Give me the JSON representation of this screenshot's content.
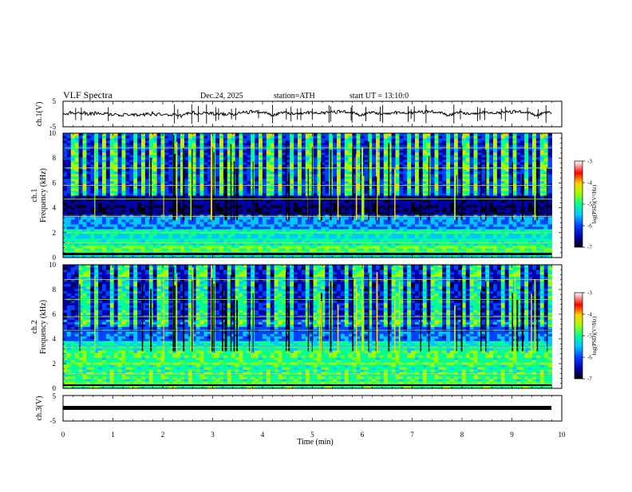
{
  "header": {
    "title": "VLF  Spectra",
    "date": "Dec.24, 2025",
    "station": "station=ATH",
    "start_ut": "start  UT  =   13:10:0"
  },
  "chart_data": [
    {
      "type": "line",
      "panel": "ch1-waveform",
      "ylabel": "ch.1(V)",
      "ylim": [
        -5,
        5
      ],
      "yticks": [
        "5",
        "-5"
      ],
      "xlim": [
        0,
        10
      ],
      "x_end": 9.8,
      "approx_level": 0
    },
    {
      "type": "heatmap",
      "panel": "ch1-spectrogram",
      "ylabel_lines": [
        "ch.1",
        "Frequency  (kHz)"
      ],
      "ylim": [
        0,
        10
      ],
      "yticks": [
        "0",
        "2",
        "4",
        "6",
        "8",
        "10"
      ],
      "xlim": [
        0,
        10
      ],
      "x_end": 9.8,
      "colorbar": {
        "label": "log(PSD)(V²/Hz)",
        "range": [
          -7,
          -3
        ],
        "ticks": [
          "-3",
          "-4",
          "-5",
          "-6",
          "-7"
        ]
      }
    },
    {
      "type": "heatmap",
      "panel": "ch2-spectrogram",
      "ylabel_lines": [
        "ch.2",
        "Frequency  (kHz)"
      ],
      "ylim": [
        0,
        10
      ],
      "yticks": [
        "0",
        "2",
        "4",
        "6",
        "8",
        "10"
      ],
      "xlim": [
        0,
        10
      ],
      "x_end": 9.8,
      "colorbar": {
        "label": "log(PSD)(V²/Hz)",
        "range": [
          -7,
          -3
        ],
        "ticks": [
          "-3",
          "-4",
          "-5",
          "-6",
          "-7"
        ]
      }
    },
    {
      "type": "line",
      "panel": "ch3-waveform",
      "ylabel": "ch.3(V)",
      "ylim": [
        -5,
        5
      ],
      "yticks": [
        "5",
        "-5"
      ],
      "xlim": [
        0,
        10
      ],
      "x_end": 9.8,
      "approx_level": 0,
      "xlabel": "Time  (min)",
      "xticks": [
        "0",
        "1",
        "2",
        "3",
        "4",
        "5",
        "6",
        "7",
        "8",
        "9",
        "10"
      ]
    }
  ],
  "colors": {
    "colormap": [
      "#000000",
      "#0000a8",
      "#0040ff",
      "#00c8ff",
      "#00ff96",
      "#a0ff00",
      "#ffd200",
      "#ff0000",
      "#ffffff"
    ]
  }
}
